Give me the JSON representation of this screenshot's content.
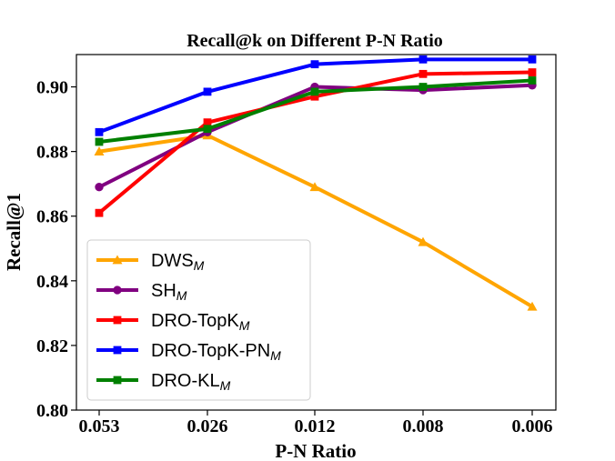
{
  "chart_data": {
    "type": "line",
    "title": "Recall@k on Different P-N Ratio",
    "xlabel": "P-N Ratio",
    "ylabel": "Recall@1",
    "categories": [
      "0.053",
      "0.026",
      "0.012",
      "0.008",
      "0.006"
    ],
    "ylim": [
      0.8,
      0.91
    ],
    "yticks": [
      "0.80",
      "0.82",
      "0.84",
      "0.86",
      "0.88",
      "0.90"
    ],
    "ytick_values": [
      0.8,
      0.82,
      0.84,
      0.86,
      0.88,
      0.9
    ],
    "grid": false,
    "legend_position": "lower-left",
    "series": [
      {
        "name_base": "DWS",
        "name_sub": "M",
        "color": "#FFA500",
        "marker": "triangle",
        "values": [
          0.88,
          0.885,
          0.869,
          0.852,
          0.832
        ]
      },
      {
        "name_base": "SH",
        "name_sub": "M",
        "color": "#800080",
        "marker": "circle",
        "values": [
          0.869,
          0.886,
          0.9,
          0.899,
          0.9005
        ]
      },
      {
        "name_base": "DRO-TopK",
        "name_sub": "M",
        "color": "#FF0000",
        "marker": "square",
        "values": [
          0.861,
          0.889,
          0.897,
          0.904,
          0.9045
        ]
      },
      {
        "name_base": "DRO-TopK-PN",
        "name_sub": "M",
        "color": "#0000FF",
        "marker": "square",
        "values": [
          0.886,
          0.8985,
          0.907,
          0.9085,
          0.9085
        ]
      },
      {
        "name_base": "DRO-KL",
        "name_sub": "M",
        "color": "#008000",
        "marker": "square",
        "values": [
          0.883,
          0.887,
          0.8985,
          0.9,
          0.902
        ]
      }
    ]
  }
}
